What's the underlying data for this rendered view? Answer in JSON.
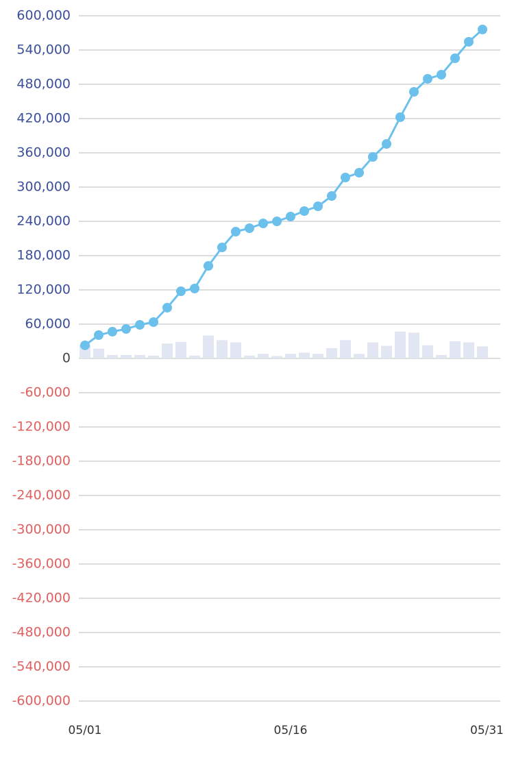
{
  "chart_data": {
    "type": "combo",
    "categories": [
      "05/01",
      null,
      null,
      null,
      null,
      null,
      null,
      null,
      null,
      null,
      null,
      null,
      null,
      null,
      null,
      "05/16",
      null,
      null,
      null,
      null,
      null,
      null,
      null,
      null,
      null,
      null,
      null,
      null,
      null,
      null,
      "05/31"
    ],
    "series": [
      {
        "type": "bar",
        "color": "#e1e6f2",
        "values": [
          23000,
          17000,
          6000,
          6000,
          6000,
          5000,
          26000,
          29000,
          5000,
          40000,
          32000,
          28000,
          5000,
          8000,
          4000,
          8000,
          10000,
          8000,
          18000,
          32000,
          8000,
          28000,
          22000,
          47000,
          45000,
          23000,
          6000,
          30000,
          28000,
          21000,
          null
        ]
      },
      {
        "type": "line",
        "color": "#6cc0ec",
        "values": [
          23000,
          40800,
          46800,
          51600,
          58800,
          63600,
          88800,
          117600,
          122400,
          162000,
          194400,
          222000,
          228000,
          236400,
          240000,
          248400,
          258000,
          266400,
          284400,
          316800,
          325200,
          352800,
          375600,
          422400,
          466800,
          489600,
          496800,
          525600,
          554400,
          576000,
          null
        ]
      }
    ],
    "ylim": [
      -600000,
      600000
    ],
    "yticks": [
      {
        "value": 600000,
        "label": "600,000"
      },
      {
        "value": 540000,
        "label": "540,000"
      },
      {
        "value": 480000,
        "label": "480,000"
      },
      {
        "value": 420000,
        "label": "420,000"
      },
      {
        "value": 360000,
        "label": "360,000"
      },
      {
        "value": 300000,
        "label": "300,000"
      },
      {
        "value": 240000,
        "label": "240,000"
      },
      {
        "value": 180000,
        "label": "180,000"
      },
      {
        "value": 120000,
        "label": "120,000"
      },
      {
        "value": 60000,
        "label": "60,000"
      },
      0,
      {
        "value": -60000,
        "label": "-60,000"
      },
      {
        "value": -120000,
        "label": "-120,000"
      },
      {
        "value": -180000,
        "label": "-180,000"
      },
      {
        "value": -240000,
        "label": "-240,000"
      },
      {
        "value": -300000,
        "label": "-300,000"
      },
      {
        "value": -360000,
        "label": "-360,000"
      },
      {
        "value": -420000,
        "label": "-420,000"
      },
      {
        "value": -480000,
        "label": "-480,000"
      },
      {
        "value": -540000,
        "label": "-540,000"
      },
      {
        "value": -600000,
        "label": "-600,000"
      }
    ],
    "grid": true,
    "tick_colors": {
      "positive": "#3b4f9a",
      "zero": "#444444",
      "negative": "#e06060"
    }
  }
}
